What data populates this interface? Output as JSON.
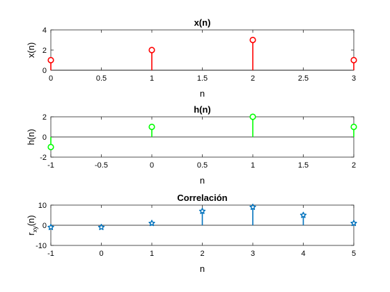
{
  "chart_data": [
    {
      "type": "stem",
      "title": "x(n)",
      "xlabel": "n",
      "ylabel": "x(n)",
      "xlim": [
        0,
        3
      ],
      "ylim": [
        0,
        4
      ],
      "xticks": [
        "0",
        "0.5",
        "1",
        "1.5",
        "2",
        "2.5",
        "3"
      ],
      "yticks": [
        "0",
        "2",
        "4"
      ],
      "marker": "circle",
      "color": "#ff0000",
      "x": [
        0,
        1,
        2,
        3
      ],
      "y": [
        1,
        2,
        3,
        1
      ]
    },
    {
      "type": "stem",
      "title": "h(n)",
      "xlabel": "n",
      "ylabel": "h(n)",
      "xlim": [
        -1,
        2
      ],
      "ylim": [
        -2,
        2
      ],
      "xticks": [
        "-1",
        "-0.5",
        "0",
        "0.5",
        "1",
        "1.5",
        "2"
      ],
      "yticks": [
        "-2",
        "0",
        "2"
      ],
      "marker": "circle",
      "color": "#00ff00",
      "x": [
        -1,
        0,
        1,
        2
      ],
      "y": [
        -1,
        1,
        2,
        1
      ]
    },
    {
      "type": "stem",
      "title": "Correlación",
      "xlabel": "n",
      "ylabel": "r",
      "ylabel_sub": "xy",
      "ylabel_rest": "(n)",
      "xlim": [
        -1,
        5
      ],
      "ylim": [
        -10,
        10
      ],
      "xticks": [
        "-1",
        "0",
        "1",
        "2",
        "3",
        "4",
        "5"
      ],
      "yticks": [
        "-10",
        "0",
        "10"
      ],
      "marker": "pentagram",
      "color": "#0072bd",
      "x": [
        -1,
        0,
        1,
        2,
        3,
        4,
        5
      ],
      "y": [
        -1,
        -1,
        1,
        7,
        9,
        5,
        1
      ]
    }
  ]
}
